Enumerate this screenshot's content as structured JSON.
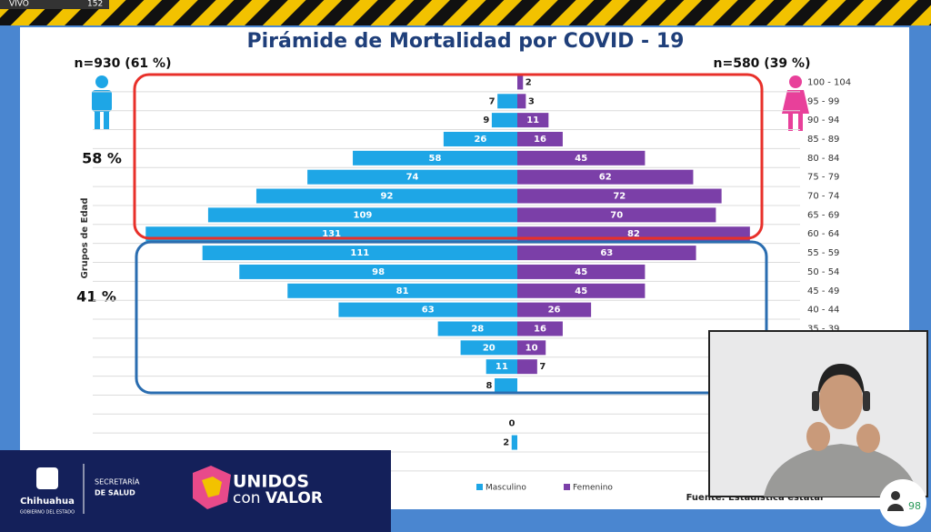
{
  "chart_data": {
    "type": "pyramid",
    "title": "Pirámide de Mortalidad por COVID - 19",
    "left_total": "n=930 (61 %)",
    "right_total": "n=580 (39 %)",
    "upper_share": "58 %",
    "lower_share": "41 %",
    "y_label": "Grupos de Edad",
    "source": "Fuente: Estadística estatal",
    "categories": [
      "100 - 104",
      "95 - 99",
      "90 - 94",
      "85 - 89",
      "80 - 84",
      "75 - 79",
      "70 - 74",
      "65 - 69",
      "60 - 64",
      "55 - 59",
      "50 - 54",
      "45 - 49",
      "40 - 44",
      "35 - 39",
      null,
      null,
      null,
      null,
      null,
      null,
      null
    ],
    "series": [
      {
        "name": "Masculino",
        "color": "#1ea6e6",
        "values": [
          null,
          7,
          9,
          26,
          58,
          74,
          92,
          109,
          131,
          111,
          98,
          81,
          63,
          28,
          20,
          11,
          8,
          null,
          0,
          2,
          null
        ]
      },
      {
        "name": "Femenino",
        "color": "#7b3fa8",
        "values": [
          2,
          3,
          11,
          16,
          45,
          62,
          72,
          70,
          82,
          63,
          45,
          45,
          26,
          16,
          10,
          7,
          null,
          null,
          null,
          null,
          null
        ]
      }
    ]
  },
  "overlay": {
    "live": "VIVO",
    "viewers": "152",
    "participants": "98",
    "gov": "Chihuahua",
    "gov_sub": "GOBIERNO DEL ESTADO",
    "dept1": "SECRETARÍA",
    "dept2": "DE SALUD",
    "campaign1": "UNIDOS",
    "campaign2": "con",
    "campaign3": "VALOR"
  }
}
